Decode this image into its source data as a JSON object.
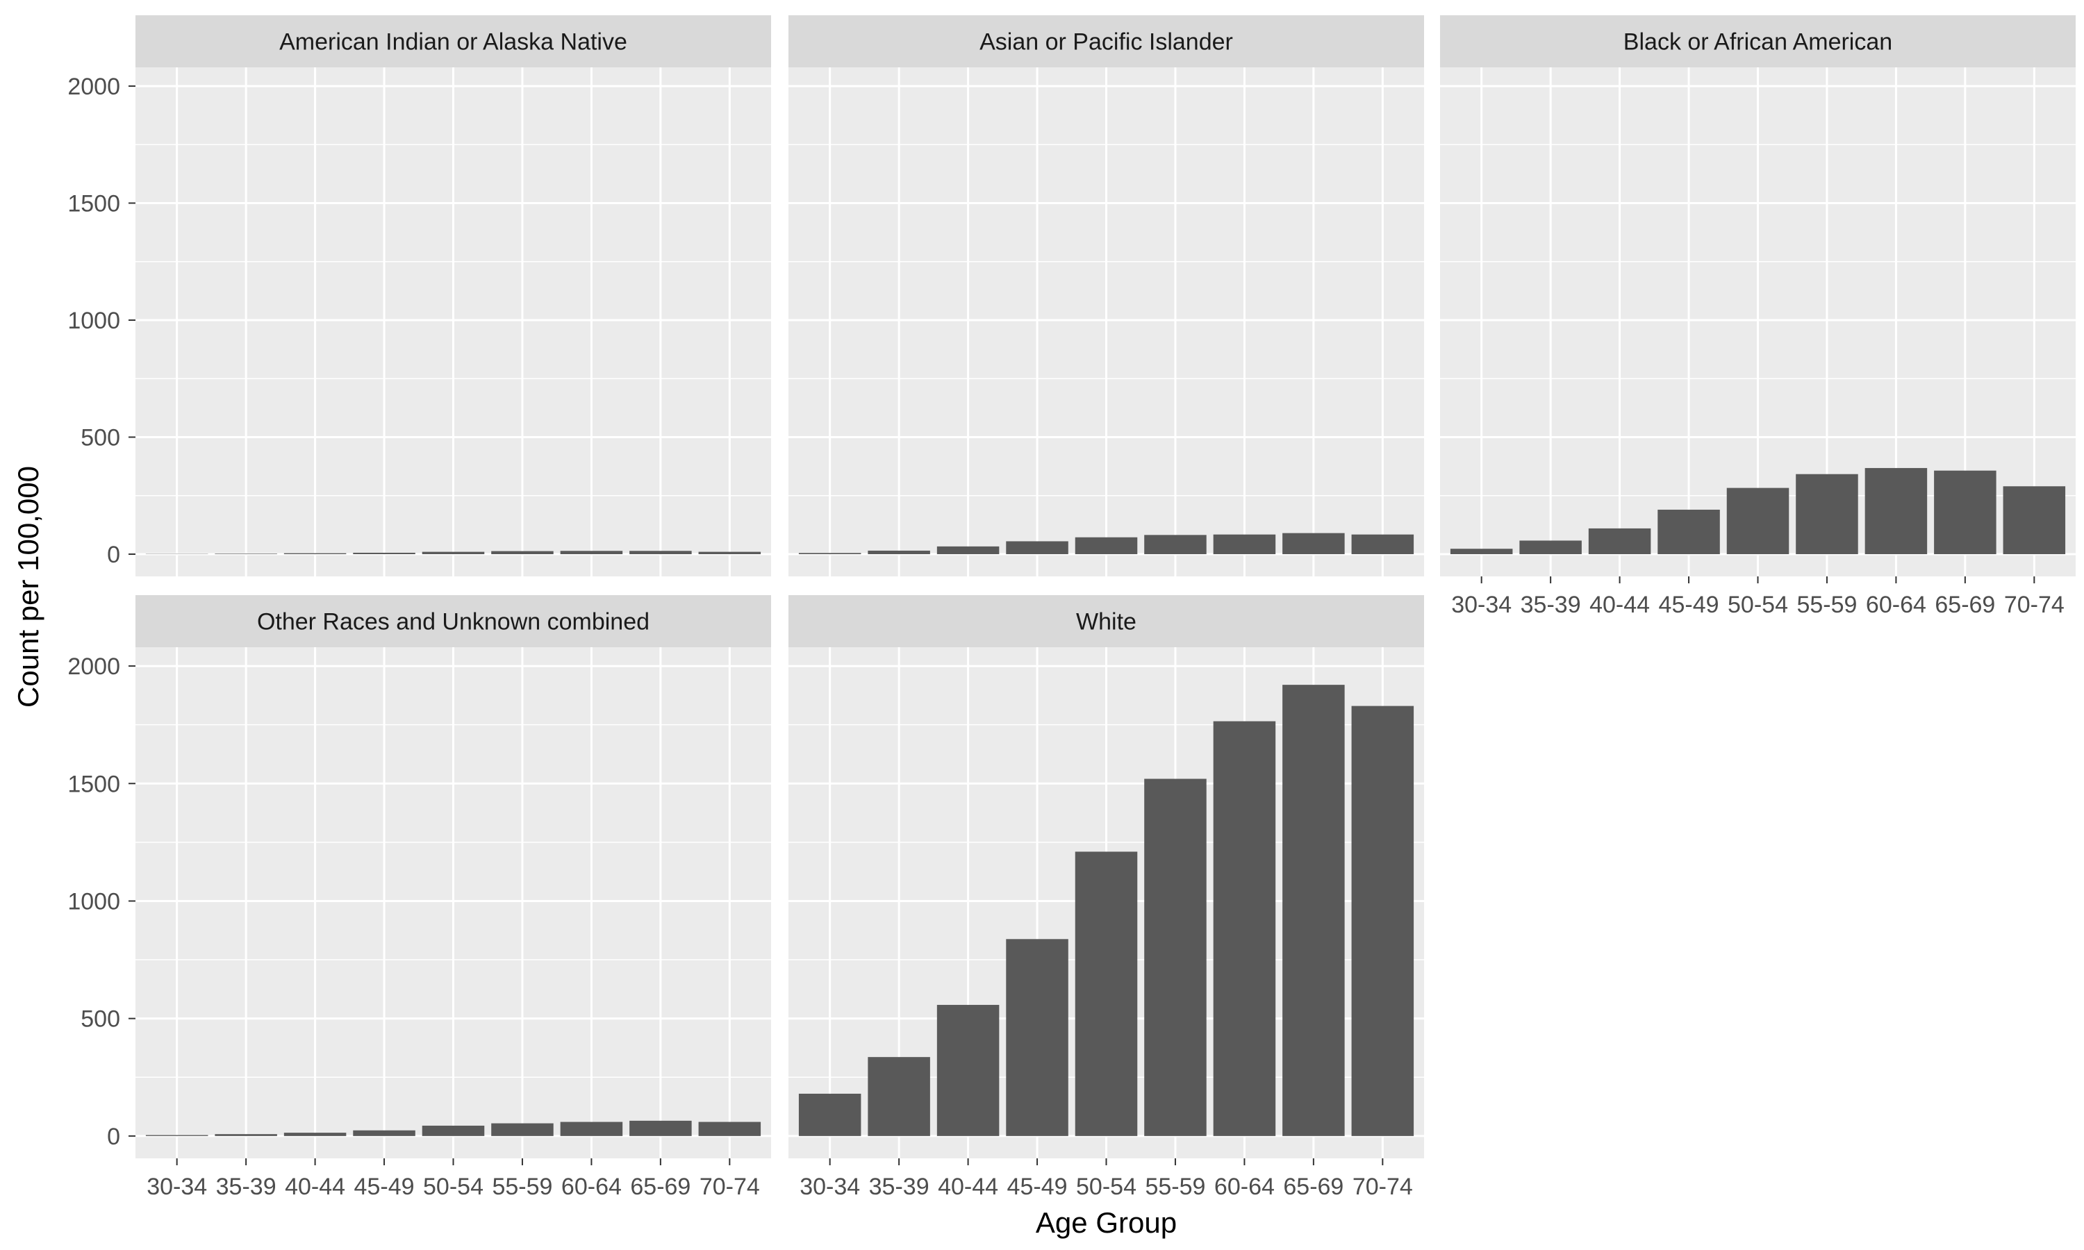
{
  "chart_data": {
    "type": "bar",
    "layout": "facet_wrap",
    "xlabel": "Age Group",
    "ylabel": "Count per 100,000",
    "ylim": [
      -95,
      2080
    ],
    "yticks": [
      0,
      500,
      1000,
      1500,
      2000
    ],
    "grid": true,
    "categories": [
      "30-34",
      "35-39",
      "40-44",
      "45-49",
      "50-54",
      "55-59",
      "60-64",
      "65-69",
      "70-74"
    ],
    "colors": {
      "bar": "#595959",
      "panel_bg": "#ebebeb",
      "strip_bg": "#d9d9d9",
      "grid": "#ffffff"
    },
    "panels": [
      {
        "title": "American Indian or Alaska Native",
        "values": [
          1,
          2,
          4,
          6,
          10,
          13,
          14,
          14,
          10
        ]
      },
      {
        "title": "Asian or Pacific Islander",
        "values": [
          5,
          15,
          33,
          55,
          72,
          82,
          84,
          90,
          84
        ]
      },
      {
        "title": "Black or African American",
        "values": [
          23,
          58,
          110,
          190,
          283,
          342,
          368,
          357,
          290
        ]
      },
      {
        "title": "Other Races and Unknown combined",
        "values": [
          4,
          8,
          14,
          24,
          44,
          54,
          60,
          65,
          60
        ]
      },
      {
        "title": "White",
        "values": [
          180,
          336,
          558,
          838,
          1210,
          1520,
          1765,
          1920,
          1830
        ]
      }
    ]
  }
}
